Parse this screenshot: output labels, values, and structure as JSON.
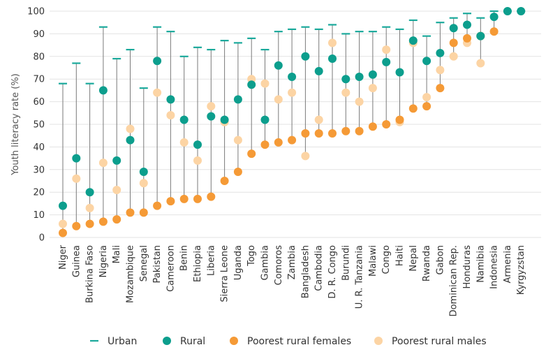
{
  "colors": {
    "urban": "#1aa99b",
    "rural": "#0c9e8d",
    "poorest_females": "#f59a36",
    "poorest_males": "#fcd4a4",
    "stem": "#7a7a7a",
    "grid": "#e3e3e3"
  },
  "legend": [
    {
      "key": "urban",
      "label": "Urban",
      "icon": "dash-icon"
    },
    {
      "key": "rural",
      "label": "Rural",
      "icon": "circle-icon"
    },
    {
      "key": "poorest_females",
      "label": "Poorest rural females",
      "icon": "circle-icon"
    },
    {
      "key": "poorest_males",
      "label": "Poorest rural males",
      "icon": "circle-icon"
    }
  ],
  "chart_data": {
    "type": "scatter",
    "title": "",
    "xlabel": "",
    "ylabel": "Youth literacy rate (%)",
    "ylim": [
      0,
      100
    ],
    "yticks": [
      0,
      10,
      20,
      30,
      40,
      50,
      60,
      70,
      80,
      90,
      100
    ],
    "grid": "horizontal",
    "legend_position": "bottom",
    "categories": [
      "Niger",
      "Guinea",
      "Burkina Faso",
      "Nigeria",
      "Mali",
      "Mozambique",
      "Senegal",
      "Pakistan",
      "Cameroon",
      "Benin",
      "Ethiopia",
      "Liberia",
      "Sierra Leone",
      "Uganda",
      "Togo",
      "Gambia",
      "Comoros",
      "Zambia",
      "Bangladesh",
      "Cambodia",
      "D. R. Congo",
      "Burundi",
      "U. R. Tanzania",
      "Malawi",
      "Congo",
      "Haiti",
      "Nepal",
      "Rwanda",
      "Gabon",
      "Dominican Rep.",
      "Honduras",
      "Namibia",
      "Indonesia",
      "Armenia",
      "Kyrgyzstan"
    ],
    "series": [
      {
        "name": "Urban",
        "key": "urban",
        "values": [
          68,
          77,
          68,
          93,
          79,
          83,
          66,
          93,
          91,
          80,
          84,
          83,
          87,
          86,
          88,
          83,
          91,
          92,
          93,
          92,
          94,
          90,
          91,
          91,
          93,
          92,
          96,
          89,
          95,
          97,
          99,
          97,
          100,
          100,
          100
        ]
      },
      {
        "name": "Rural",
        "key": "rural",
        "values": [
          14,
          35,
          20,
          65,
          34,
          43,
          29,
          78,
          61,
          52,
          41,
          53.5,
          52,
          61,
          67.5,
          52,
          76,
          71,
          80,
          73.5,
          79,
          70,
          71,
          72,
          77.5,
          73,
          87,
          78,
          81.5,
          92.5,
          94,
          89,
          97.5,
          100,
          100
        ]
      },
      {
        "name": "Poorest rural females",
        "key": "poorest_females",
        "values": [
          2,
          5,
          6,
          7,
          8,
          11,
          11,
          14,
          16,
          17,
          17,
          18,
          25,
          29,
          37,
          41,
          42,
          43,
          46,
          46,
          46,
          47,
          47,
          49,
          50,
          52,
          57,
          58,
          66,
          86,
          88,
          89,
          91,
          null,
          null
        ]
      },
      {
        "name": "Poorest rural males",
        "key": "poorest_males",
        "values": [
          6,
          26,
          13,
          33,
          21,
          48,
          24,
          64,
          54,
          42,
          34,
          58,
          51,
          43,
          70,
          68,
          61,
          64,
          36,
          52,
          86,
          64,
          60,
          66,
          83,
          51,
          86,
          62,
          74,
          80,
          86,
          77,
          null,
          null,
          null
        ]
      }
    ]
  }
}
